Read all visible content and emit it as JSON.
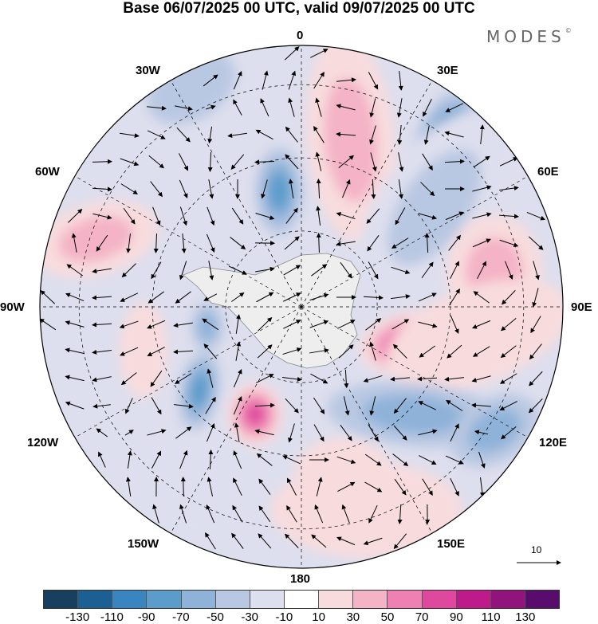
{
  "header": {
    "title": "Base 06/07/2025 00 UTC, valid 09/07/2025 00 UTC",
    "brand": "MODES",
    "brand_mark": "©"
  },
  "map": {
    "projection": "south-polar-stereographic",
    "longitude_labels": [
      "0",
      "30E",
      "60E",
      "90E",
      "120E",
      "150E",
      "180",
      "150W",
      "120W",
      "90W",
      "60W",
      "30W"
    ],
    "vector_reference": "10",
    "colors": {
      "land": "#eeeeee",
      "coast": "#888888",
      "grid": "#000000",
      "arrows": "#000000"
    }
  },
  "colorbar": {
    "ticks": [
      "-130",
      "-110",
      "-90",
      "-70",
      "-50",
      "-30",
      "-10",
      "10",
      "30",
      "50",
      "70",
      "90",
      "110",
      "130"
    ],
    "colors": [
      "#17405f",
      "#1b5f93",
      "#3a84bf",
      "#5c9ccb",
      "#8fb2d9",
      "#b9c8e2",
      "#dedfee",
      "#ffffff",
      "#f8dcdd",
      "#f4b3c6",
      "#ee80b2",
      "#e0489e",
      "#bf1a8a",
      "#92137e",
      "#5a0c6e"
    ]
  }
}
